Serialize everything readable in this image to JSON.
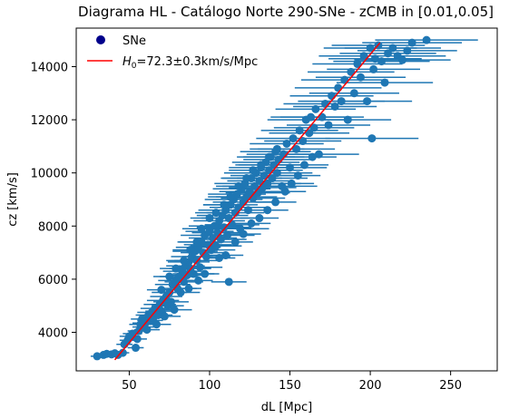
{
  "chart_data": {
    "type": "scatter",
    "title": "Diagrama HL - Catálogo Norte 290-SNe - zCMB in [0.01,0.05]",
    "xlabel": "dL [Mpc]",
    "ylabel": "cz [km/s]",
    "xlim": [
      17,
      279
    ],
    "ylim": [
      2550,
      15450
    ],
    "xticks": [
      50,
      100,
      150,
      200,
      250
    ],
    "yticks": [
      4000,
      6000,
      8000,
      10000,
      12000,
      14000
    ],
    "grid": false,
    "legend_position": "upper left",
    "colors": {
      "points": "#1f77b4",
      "fit": "#ff0000",
      "legend_marker": "#00008b"
    },
    "legend": [
      {
        "label": "SNe",
        "kind": "marker"
      },
      {
        "label_prefix": "H",
        "label_sub": "0",
        "label_suffix": "=72.3±0.3km/s/Mpc",
        "kind": "line"
      }
    ],
    "fit": {
      "H0": 72.3,
      "H0_err": 0.3,
      "x": [
        41,
        206
      ],
      "y": [
        2964,
        14894
      ]
    },
    "series": {
      "points": [
        [
          30,
          3100,
          4
        ],
        [
          34,
          3150,
          4
        ],
        [
          36,
          3190,
          4
        ],
        [
          39,
          3170,
          4
        ],
        [
          41,
          3210,
          4
        ],
        [
          43,
          3150,
          4
        ],
        [
          46,
          3230,
          4
        ],
        [
          47,
          3550,
          5
        ],
        [
          49,
          3700,
          5
        ],
        [
          50,
          3850,
          6
        ],
        [
          52,
          3950,
          6
        ],
        [
          54,
          3420,
          5
        ],
        [
          55,
          3750,
          6
        ],
        [
          56,
          4050,
          7
        ],
        [
          57,
          4300,
          7
        ],
        [
          58,
          4500,
          7
        ],
        [
          59,
          4200,
          7
        ],
        [
          60,
          4350,
          8
        ],
        [
          61,
          4100,
          8
        ],
        [
          62,
          4650,
          8
        ],
        [
          63,
          4450,
          8
        ],
        [
          64,
          4750,
          9
        ],
        [
          65,
          4550,
          9
        ],
        [
          66,
          4900,
          9
        ],
        [
          67,
          4300,
          9
        ],
        [
          68,
          4650,
          9
        ],
        [
          69,
          5050,
          10
        ],
        [
          70,
          4800,
          10
        ],
        [
          71,
          5200,
          10
        ],
        [
          72,
          4600,
          10
        ],
        [
          73,
          5350,
          10
        ],
        [
          74,
          5000,
          10
        ],
        [
          75,
          5500,
          11
        ],
        [
          76,
          5150,
          11
        ],
        [
          77,
          5800,
          11
        ],
        [
          78,
          4850,
          11
        ],
        [
          79,
          5950,
          11
        ],
        [
          80,
          5650,
          12
        ],
        [
          81,
          6100,
          12
        ],
        [
          82,
          5500,
          12
        ],
        [
          83,
          6300,
          12
        ],
        [
          84,
          5900,
          12
        ],
        [
          85,
          6500,
          12
        ],
        [
          86,
          6150,
          13
        ],
        [
          87,
          6650,
          13
        ],
        [
          88,
          6400,
          13
        ],
        [
          89,
          6850,
          13
        ],
        [
          90,
          6200,
          13
        ],
        [
          91,
          7050,
          14
        ],
        [
          92,
          6700,
          14
        ],
        [
          93,
          7200,
          14
        ],
        [
          94,
          6450,
          14
        ],
        [
          95,
          7400,
          14
        ],
        [
          96,
          7000,
          14
        ],
        [
          97,
          7650,
          15
        ],
        [
          98,
          6850,
          15
        ],
        [
          99,
          7300,
          15
        ],
        [
          100,
          7800,
          15
        ],
        [
          101,
          7100,
          15
        ],
        [
          102,
          7550,
          15
        ],
        [
          103,
          8000,
          16
        ],
        [
          104,
          7250,
          16
        ],
        [
          105,
          7750,
          16
        ],
        [
          106,
          8200,
          16
        ],
        [
          107,
          7500,
          16
        ],
        [
          108,
          8400,
          16
        ],
        [
          109,
          7950,
          17
        ],
        [
          110,
          8600,
          17
        ],
        [
          111,
          7650,
          17
        ],
        [
          112,
          8300,
          17
        ],
        [
          113,
          8800,
          17
        ],
        [
          114,
          8050,
          17
        ],
        [
          115,
          9000,
          18
        ],
        [
          116,
          8500,
          18
        ],
        [
          117,
          9200,
          18
        ],
        [
          118,
          8700,
          18
        ],
        [
          119,
          7900,
          18
        ],
        [
          120,
          9400,
          18
        ],
        [
          121,
          8900,
          19
        ],
        [
          122,
          9600,
          19
        ],
        [
          123,
          9100,
          19
        ],
        [
          124,
          8600,
          19
        ],
        [
          125,
          9300,
          19
        ],
        [
          126,
          9800,
          19
        ],
        [
          127,
          9050,
          20
        ],
        [
          128,
          9500,
          20
        ],
        [
          129,
          10000,
          20
        ],
        [
          130,
          9250,
          20
        ],
        [
          131,
          9700,
          20
        ],
        [
          132,
          10200,
          20
        ],
        [
          133,
          9450,
          21
        ],
        [
          134,
          9900,
          21
        ],
        [
          135,
          10400,
          21
        ],
        [
          136,
          9600,
          21
        ],
        [
          137,
          10100,
          21
        ],
        [
          138,
          10600,
          21
        ],
        [
          139,
          9800,
          22
        ],
        [
          140,
          10300,
          22
        ],
        [
          141,
          10800,
          22
        ],
        [
          142,
          10000,
          22
        ],
        [
          143,
          10500,
          22
        ],
        [
          145,
          9500,
          22
        ],
        [
          146,
          10700,
          23
        ],
        [
          148,
          11100,
          23
        ],
        [
          150,
          10200,
          23
        ],
        [
          152,
          11300,
          23
        ],
        [
          154,
          10900,
          24
        ],
        [
          156,
          11600,
          24
        ],
        [
          158,
          11200,
          24
        ],
        [
          160,
          12000,
          24
        ],
        [
          162,
          11500,
          25
        ],
        [
          163,
          12100,
          25
        ],
        [
          165,
          11700,
          25
        ],
        [
          166,
          12400,
          25
        ],
        [
          168,
          10700,
          25
        ],
        [
          170,
          12100,
          26
        ],
        [
          172,
          12600,
          26
        ],
        [
          174,
          11800,
          26
        ],
        [
          176,
          12900,
          26
        ],
        [
          178,
          12500,
          26
        ],
        [
          180,
          13200,
          27
        ],
        [
          182,
          12700,
          27
        ],
        [
          184,
          13500,
          27
        ],
        [
          186,
          12000,
          27
        ],
        [
          188,
          13800,
          27
        ],
        [
          190,
          13000,
          28
        ],
        [
          192,
          14100,
          28
        ],
        [
          194,
          13600,
          28
        ],
        [
          196,
          14400,
          28
        ],
        [
          198,
          12700,
          28
        ],
        [
          200,
          14700,
          29
        ],
        [
          201,
          11300,
          29
        ],
        [
          202,
          13900,
          29
        ],
        [
          203,
          14300,
          29
        ],
        [
          205,
          14800,
          29
        ],
        [
          207,
          14200,
          30
        ],
        [
          209,
          13400,
          30
        ],
        [
          211,
          14500,
          30
        ],
        [
          214,
          14700,
          30
        ],
        [
          217,
          14400,
          30
        ],
        [
          220,
          14250,
          30
        ],
        [
          223,
          14600,
          31
        ],
        [
          226,
          14900,
          31
        ],
        [
          235,
          15000,
          32
        ],
        [
          87,
          5650,
          8
        ],
        [
          93,
          5950,
          9
        ],
        [
          97,
          6200,
          9
        ],
        [
          106,
          6800,
          10
        ],
        [
          110,
          6900,
          11
        ],
        [
          112,
          5900,
          11
        ],
        [
          116,
          7400,
          11
        ],
        [
          121,
          7700,
          11
        ],
        [
          126,
          8100,
          12
        ],
        [
          131,
          8300,
          12
        ],
        [
          136,
          8600,
          13
        ],
        [
          141,
          8900,
          13
        ],
        [
          147,
          9300,
          13
        ],
        [
          151,
          9600,
          14
        ],
        [
          155,
          9900,
          14
        ],
        [
          159,
          10300,
          15
        ],
        [
          164,
          10600,
          15
        ],
        [
          95,
          7900,
          12
        ],
        [
          100,
          8300,
          12
        ],
        [
          104,
          8500,
          13
        ],
        [
          109,
          8800,
          13
        ],
        [
          113,
          9100,
          14
        ],
        [
          118,
          9500,
          14
        ],
        [
          123,
          9800,
          15
        ],
        [
          127,
          10100,
          15
        ],
        [
          132,
          10300,
          16
        ],
        [
          137,
          10600,
          16
        ],
        [
          142,
          10900,
          17
        ],
        [
          70,
          5600,
          9
        ],
        [
          75,
          6100,
          10
        ],
        [
          79,
          6400,
          10
        ],
        [
          84,
          6700,
          11
        ],
        [
          88,
          7100,
          11
        ],
        [
          92,
          7400,
          12
        ]
      ]
    }
  }
}
